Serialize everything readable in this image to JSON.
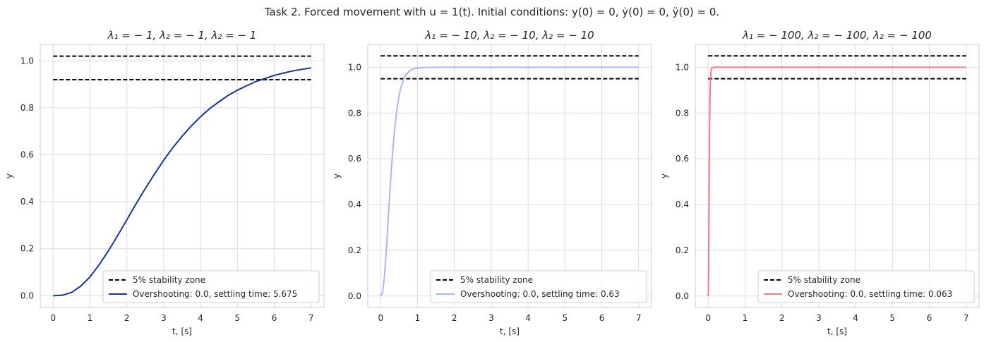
{
  "figure": {
    "suptitle": "Task 2. Forced movement with u = 1(t). Initial conditions: y(0) = 0, ẏ(0) = 0, ÿ(0) = 0."
  },
  "chart_data": [
    {
      "type": "line",
      "title": "λ₁ = − 1, λ₂ = − 1, λ₂ = − 1",
      "xlabel": "t, [s]",
      "ylabel": "y",
      "xlim": [
        -0.35,
        7.35
      ],
      "ylim": [
        -0.05,
        1.07
      ],
      "xticks": [
        0,
        1,
        2,
        3,
        4,
        5,
        6,
        7
      ],
      "yticks": [
        0.0,
        0.2,
        0.4,
        0.6,
        0.8,
        1.0
      ],
      "grid": true,
      "legend_position": "lower right",
      "series": [
        {
          "name": "Overshooting: 0.0, settling time: 5.675",
          "color": "#1a3494",
          "x": [
            0,
            0.25,
            0.5,
            0.75,
            1,
            1.25,
            1.5,
            1.75,
            2,
            2.25,
            2.5,
            2.75,
            3,
            3.25,
            3.5,
            3.75,
            4,
            4.25,
            4.5,
            4.75,
            5,
            5.25,
            5.5,
            5.75,
            6,
            6.25,
            6.5,
            6.75,
            7
          ],
          "y": [
            0,
            0.002,
            0.014,
            0.041,
            0.08,
            0.132,
            0.191,
            0.256,
            0.323,
            0.391,
            0.456,
            0.518,
            0.577,
            0.631,
            0.679,
            0.723,
            0.762,
            0.797,
            0.826,
            0.853,
            0.875,
            0.894,
            0.912,
            0.925,
            0.938,
            0.948,
            0.957,
            0.964,
            0.97
          ]
        },
        {
          "name": "5% stability zone",
          "color": "#000000",
          "dashed": true,
          "x": [
            0,
            7
          ],
          "y_bands": [
            0.92,
            1.02
          ]
        }
      ]
    },
    {
      "type": "line",
      "title": "λ₁ = − 10, λ₂ = − 10, λ₂ = − 10",
      "xlabel": "t, [s]",
      "ylabel": "y",
      "xlim": [
        -0.35,
        7.35
      ],
      "ylim": [
        -0.05,
        1.1
      ],
      "xticks": [
        0,
        1,
        2,
        3,
        4,
        5,
        6,
        7
      ],
      "yticks": [
        0.0,
        0.2,
        0.4,
        0.6,
        0.8,
        1.0
      ],
      "grid": true,
      "legend_position": "lower right",
      "series": [
        {
          "name": "Overshooting: 0.0, settling time: 0.63",
          "color": "#a8b8f0",
          "x": [
            0,
            0.05,
            0.1,
            0.15,
            0.2,
            0.25,
            0.3,
            0.35,
            0.4,
            0.45,
            0.5,
            0.55,
            0.6,
            0.65,
            0.7,
            0.8,
            0.9,
            1.0,
            1.2,
            1.5,
            2,
            3,
            4,
            5,
            6,
            7
          ],
          "y": [
            0,
            0.014,
            0.08,
            0.191,
            0.323,
            0.456,
            0.577,
            0.679,
            0.762,
            0.826,
            0.875,
            0.912,
            0.938,
            0.957,
            0.97,
            0.986,
            0.994,
            0.997,
            0.9995,
            1.0,
            1.0,
            1.0,
            1.0,
            1.0,
            1.0,
            1.0
          ]
        },
        {
          "name": "5% stability zone",
          "color": "#000000",
          "dashed": true,
          "x": [
            0,
            7
          ],
          "y_bands": [
            0.95,
            1.05
          ]
        }
      ]
    },
    {
      "type": "line",
      "title": "λ₁ = − 100, λ₂ = − 100, λ₂ = − 100",
      "xlabel": "t, [s]",
      "ylabel": "y",
      "xlim": [
        -0.35,
        7.35
      ],
      "ylim": [
        -0.05,
        1.1
      ],
      "xticks": [
        0,
        1,
        2,
        3,
        4,
        5,
        6,
        7
      ],
      "yticks": [
        0.0,
        0.2,
        0.4,
        0.6,
        0.8,
        1.0
      ],
      "grid": true,
      "legend_position": "lower right",
      "series": [
        {
          "name": "Overshooting: 0.0, settling time: 0.063",
          "color": "#f07a86",
          "x": [
            0,
            0.005,
            0.01,
            0.015,
            0.02,
            0.025,
            0.03,
            0.035,
            0.04,
            0.05,
            0.06,
            0.07,
            0.08,
            0.1,
            0.15,
            0.2,
            1,
            2,
            3,
            4,
            5,
            6,
            7
          ],
          "y": [
            0,
            0.014,
            0.08,
            0.191,
            0.323,
            0.456,
            0.577,
            0.679,
            0.762,
            0.875,
            0.938,
            0.97,
            0.986,
            0.997,
            1.0,
            1.0,
            1.0,
            1.0,
            1.0,
            1.0,
            1.0,
            1.0,
            1.0
          ]
        },
        {
          "name": "5% stability zone",
          "color": "#000000",
          "dashed": true,
          "x": [
            0,
            7
          ],
          "y_bands": [
            0.95,
            1.05
          ]
        }
      ]
    }
  ]
}
